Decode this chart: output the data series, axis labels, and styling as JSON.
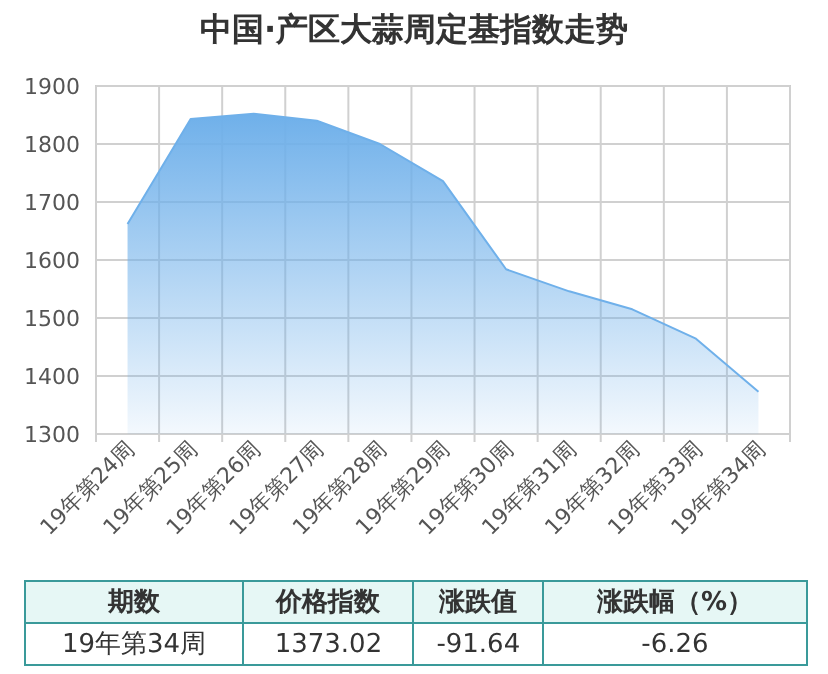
{
  "chart_data": {
    "type": "area",
    "title": "中国·产区大蒜周定基指数走势",
    "categories": [
      "19年第24周",
      "19年第25周",
      "19年第26周",
      "19年第27周",
      "19年第28周",
      "19年第29周",
      "19年第30周",
      "19年第31周",
      "19年第32周",
      "19年第33周",
      "19年第34周"
    ],
    "values": [
      1662,
      1843,
      1852,
      1840,
      1800,
      1736,
      1584,
      1546,
      1515,
      1465,
      1373.02
    ],
    "color": "#6fb0ea",
    "ylim": [
      1300,
      1900
    ],
    "yticks": [
      1300,
      1400,
      1500,
      1600,
      1700,
      1800,
      1900
    ],
    "grid": true,
    "annotations": [
      "期数",
      "价格指数",
      "涨跌值",
      "涨跌幅（%）",
      "19年第34周",
      "1373.02",
      "-91.64",
      "-6.26"
    ]
  }
}
